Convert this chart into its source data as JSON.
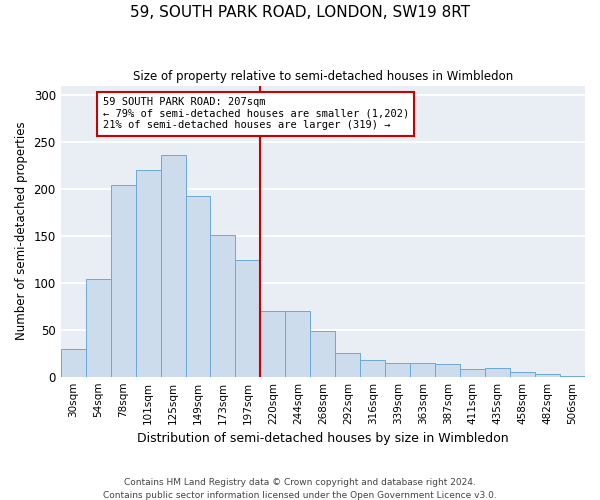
{
  "title1": "59, SOUTH PARK ROAD, LONDON, SW19 8RT",
  "title2": "Size of property relative to semi-detached houses in Wimbledon",
  "xlabel": "Distribution of semi-detached houses by size in Wimbledon",
  "ylabel": "Number of semi-detached properties",
  "bar_labels": [
    "30sqm",
    "54sqm",
    "78sqm",
    "101sqm",
    "125sqm",
    "149sqm",
    "173sqm",
    "197sqm",
    "220sqm",
    "244sqm",
    "268sqm",
    "292sqm",
    "316sqm",
    "339sqm",
    "363sqm",
    "387sqm",
    "411sqm",
    "435sqm",
    "458sqm",
    "482sqm",
    "506sqm"
  ],
  "bar_values": [
    30,
    104,
    204,
    220,
    236,
    192,
    151,
    124,
    70,
    70,
    49,
    25,
    18,
    15,
    15,
    13,
    8,
    9,
    5,
    3,
    1
  ],
  "bar_color": "#ccdcec",
  "bar_edgecolor": "#6aaad4",
  "vline_color": "#cc0000",
  "annotation_text": "59 SOUTH PARK ROAD: 207sqm\n← 79% of semi-detached houses are smaller (1,202)\n21% of semi-detached houses are larger (319) →",
  "annotation_box_color": "#ffffff",
  "annotation_box_edgecolor": "#cc0000",
  "ylim": [
    0,
    310
  ],
  "yticks": [
    0,
    50,
    100,
    150,
    200,
    250,
    300
  ],
  "plot_bg_color": "#e8eef4",
  "fig_bg_color": "#ffffff",
  "grid_color": "#ffffff",
  "footer1": "Contains HM Land Registry data © Crown copyright and database right 2024.",
  "footer2": "Contains public sector information licensed under the Open Government Licence v3.0."
}
